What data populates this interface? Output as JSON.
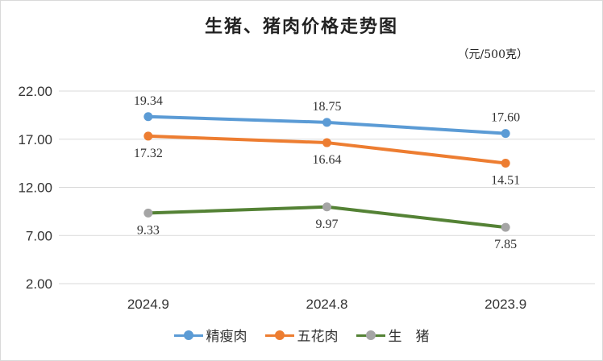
{
  "chart_data": {
    "type": "line",
    "title": "生猪、猪肉价格走势图",
    "unit": "（元/500克）",
    "categories": [
      "2024.9",
      "2024.8",
      "2023.9"
    ],
    "ylim": [
      2.0,
      22.0
    ],
    "yticks": [
      "22.00",
      "17.00",
      "12.00",
      "7.00",
      "2.00"
    ],
    "ytick_values": [
      22,
      17,
      12,
      7,
      2
    ],
    "grid": true,
    "legend_position": "bottom",
    "series": [
      {
        "name": "精瘦肉",
        "values": [
          19.34,
          18.75,
          17.6
        ],
        "labels": [
          "19.34",
          "18.75",
          "17.60"
        ],
        "label_side": "above",
        "line_color": "#5b9bd5",
        "marker_color": "#5b9bd5"
      },
      {
        "name": "五花肉",
        "values": [
          17.32,
          16.64,
          14.51
        ],
        "labels": [
          "17.32",
          "16.64",
          "14.51"
        ],
        "label_side": "below",
        "line_color": "#ed7d31",
        "marker_color": "#ed7d31"
      },
      {
        "name": "生　猪",
        "values": [
          9.33,
          9.97,
          7.85
        ],
        "labels": [
          "9.33",
          "9.97",
          "7.85"
        ],
        "label_side": "below",
        "line_color": "#548235",
        "marker_color": "#a5a5a5"
      }
    ]
  }
}
